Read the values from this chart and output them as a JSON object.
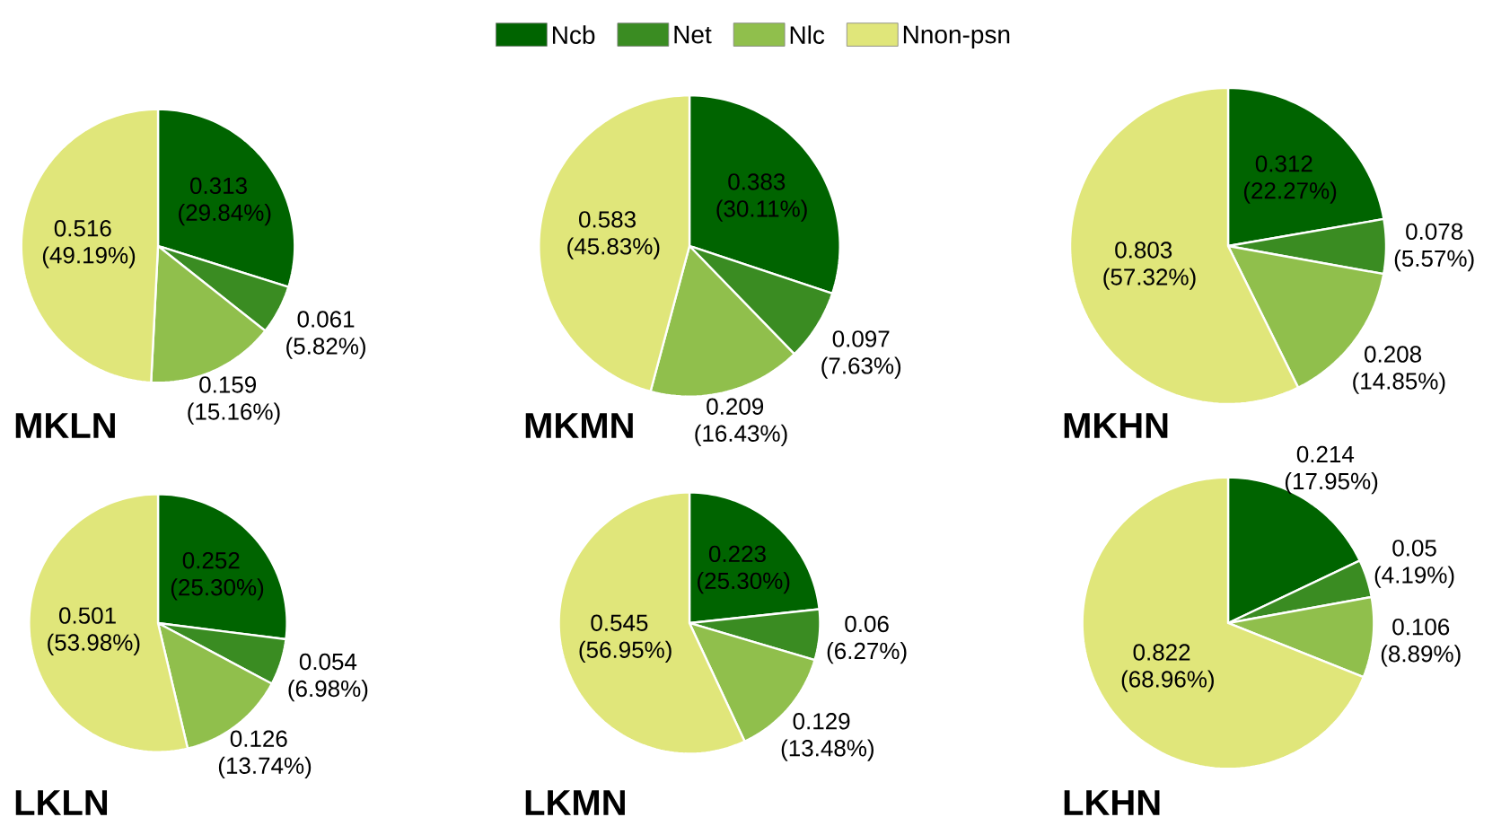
{
  "chart_data": [
    {
      "type": "pie",
      "title": "MKLN",
      "legend": "top",
      "categories": [
        "Ncb",
        "Net",
        "Nlc",
        "Nnon-psn"
      ],
      "colors": [
        "#006400",
        "#3a8c22",
        "#90bf4c",
        "#e0e67a"
      ],
      "values": [
        0.313,
        0.061,
        0.159,
        0.516
      ],
      "value_labels": [
        "0.313 (29.84%)",
        "0.061 (5.82%)",
        "0.159 (15.16%)",
        "0.516 (49.19%)"
      ]
    },
    {
      "type": "pie",
      "title": "MKMN",
      "categories": [
        null,
        null,
        null,
        null
      ],
      "colors": [
        "#006400",
        "#3a8c22",
        "#90bf4c",
        "#e0e67a"
      ],
      "values": [
        0.383,
        0.097,
        0.209,
        0.583
      ],
      "value_labels": [
        "0.383 (30.11%)",
        "0.097 (7.63%)",
        "0.209 (16.43%)",
        "0.583 (45.83%)"
      ]
    },
    {
      "type": "pie",
      "title": "MKHN",
      "categories": [
        null,
        null,
        null,
        null
      ],
      "colors": [
        "#006400",
        "#3a8c22",
        "#90bf4c",
        "#e0e67a"
      ],
      "values": [
        0.312,
        0.078,
        0.208,
        0.803
      ],
      "value_labels": [
        "0.312 (22.27%)",
        "0.078 (5.57%)",
        "0.208 (14.85%)",
        "0.803 (57.32%)"
      ]
    },
    {
      "type": "pie",
      "title": "LKLN",
      "categories": [
        null,
        null,
        null,
        null
      ],
      "colors": [
        "#006400",
        "#3a8c22",
        "#90bf4c",
        "#e0e67a"
      ],
      "values": [
        0.252,
        0.054,
        0.126,
        0.501
      ],
      "value_labels": [
        "0.252 (25.30%)",
        "0.054 (6.98%)",
        "0.126 (13.74%)",
        "0.501 (53.98%)"
      ]
    },
    {
      "type": "pie",
      "title": "LKMN",
      "categories": [
        null,
        null,
        null,
        null
      ],
      "colors": [
        "#006400",
        "#3a8c22",
        "#90bf4c",
        "#e0e67a"
      ],
      "values": [
        0.223,
        0.06,
        0.129,
        0.545
      ],
      "value_labels": [
        "0.223 (25.30%)",
        "0.06 (6.27%)",
        "0.129 (13.48%)",
        "0.545 (56.95%)"
      ]
    },
    {
      "type": "pie",
      "title": "LKHN",
      "categories": [
        null,
        null,
        null,
        null
      ],
      "colors": [
        "#006400",
        "#3a8c22",
        "#90bf4c",
        "#e0e67a"
      ],
      "values": [
        0.214,
        0.05,
        0.106,
        0.822
      ],
      "value_labels": [
        "0.214 (17.95%)",
        "0.05 (4.19%)",
        "0.106 (8.89%)",
        "0.822 (68.96%)"
      ]
    }
  ]
}
